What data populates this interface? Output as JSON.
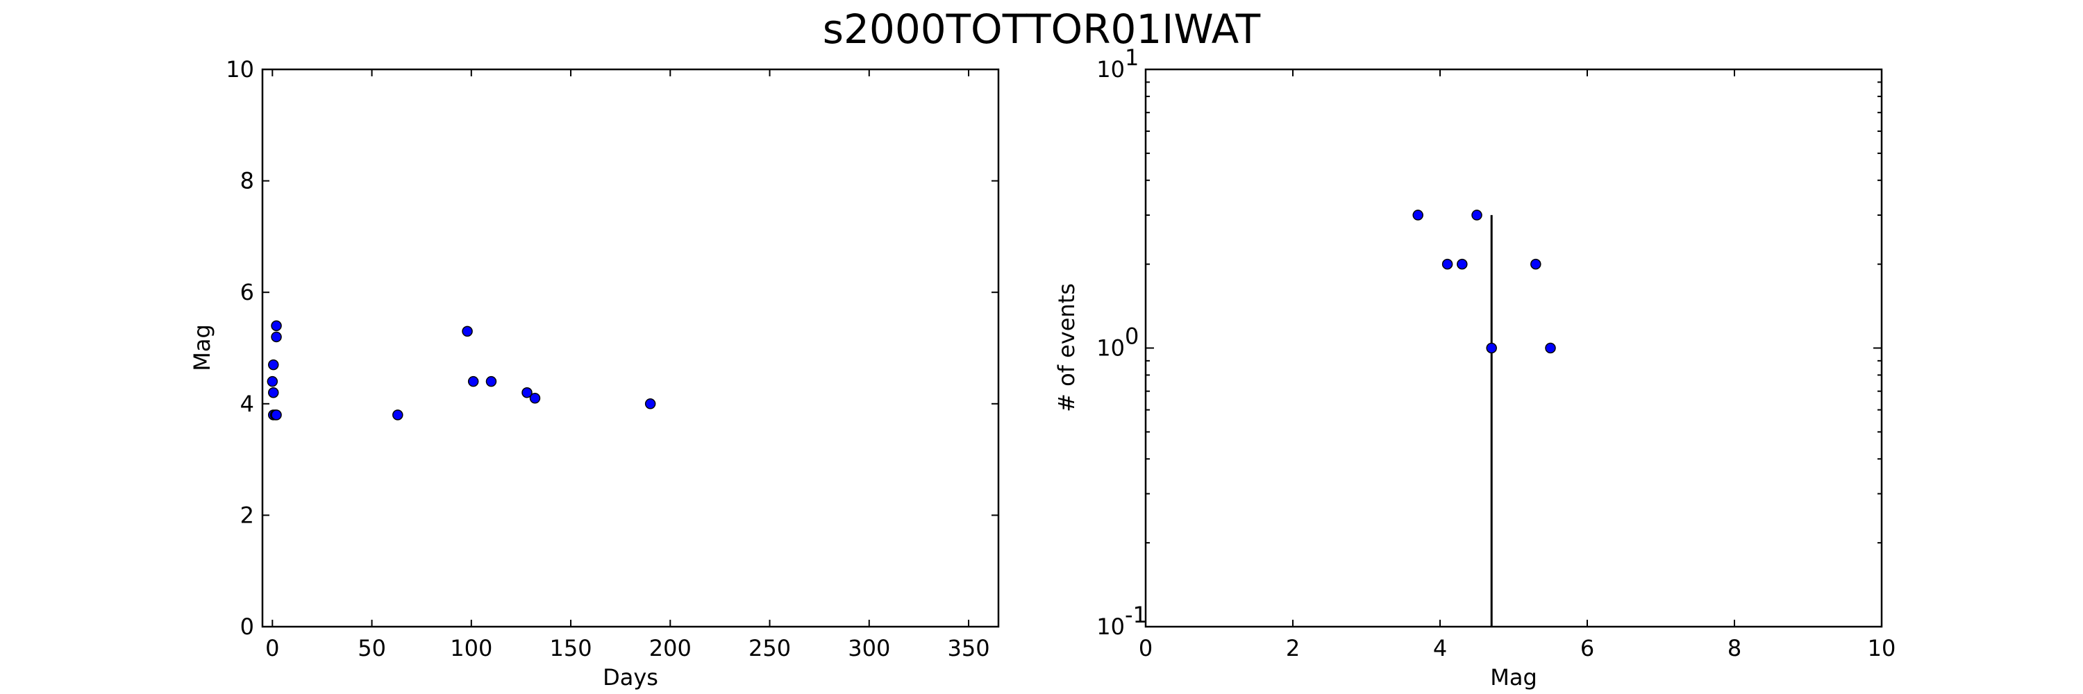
{
  "title": "s2000TOTTOR01IWAT",
  "chart_data": [
    {
      "type": "scatter",
      "xlabel": "Days",
      "ylabel": "Mag",
      "xlim": [
        -5,
        365
      ],
      "ylim": [
        0,
        10
      ],
      "xticks": [
        0,
        50,
        100,
        150,
        200,
        250,
        300,
        350
      ],
      "yticks": [
        0,
        2,
        4,
        6,
        8,
        10
      ],
      "points": [
        {
          "x": 0.5,
          "y": 3.8
        },
        {
          "x": 1.5,
          "y": 3.8
        },
        {
          "x": 2.0,
          "y": 3.8
        },
        {
          "x": 0.5,
          "y": 4.2
        },
        {
          "x": 0.0,
          "y": 4.4
        },
        {
          "x": 0.5,
          "y": 4.7
        },
        {
          "x": 2.0,
          "y": 5.2
        },
        {
          "x": 2.0,
          "y": 5.4
        },
        {
          "x": 63,
          "y": 3.8
        },
        {
          "x": 98,
          "y": 5.3
        },
        {
          "x": 101,
          "y": 4.4
        },
        {
          "x": 110,
          "y": 4.4
        },
        {
          "x": 128,
          "y": 4.2
        },
        {
          "x": 132,
          "y": 4.1
        },
        {
          "x": 190,
          "y": 4.0
        }
      ],
      "marker_color": "#0000ff"
    },
    {
      "type": "scatter",
      "xlabel": "# of events",
      "xlabel_note": "",
      "ylabel": "# of events",
      "x_axis_label": "Mag",
      "xlim": [
        0,
        10
      ],
      "ylim": [
        0.1,
        10
      ],
      "yscale": "log",
      "xticks": [
        0,
        2,
        4,
        6,
        8,
        10
      ],
      "yticks": [
        {
          "value": 0.1,
          "base": "10",
          "exp": "-1"
        },
        {
          "value": 1,
          "base": "10",
          "exp": "0"
        },
        {
          "value": 10,
          "base": "10",
          "exp": "1"
        }
      ],
      "points": [
        {
          "x": 3.7,
          "y": 3
        },
        {
          "x": 4.1,
          "y": 2
        },
        {
          "x": 4.3,
          "y": 2
        },
        {
          "x": 4.5,
          "y": 3
        },
        {
          "x": 4.7,
          "y": 1
        },
        {
          "x": 5.3,
          "y": 2
        },
        {
          "x": 5.5,
          "y": 1
        }
      ],
      "vline": {
        "x": 4.7,
        "y_from": 0.1,
        "y_to": 3
      },
      "marker_color": "#0000ff"
    }
  ]
}
